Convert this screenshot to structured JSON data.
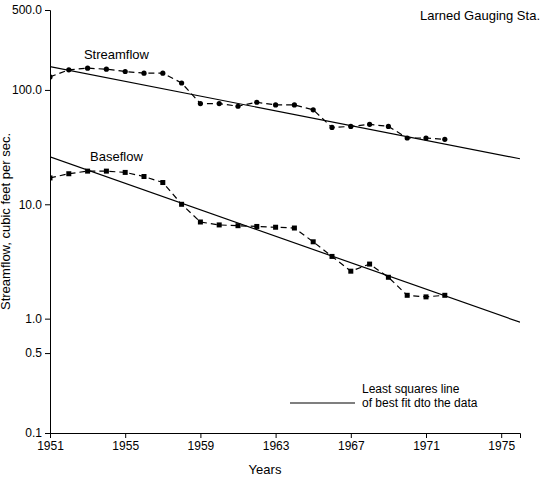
{
  "chart_data": {
    "type": "line",
    "title": "Larned Gauging Sta.",
    "x_label": "Years",
    "y_label": "Streamflow, cubic feet per sec.",
    "log": "y",
    "grid": false,
    "legend": "lower right",
    "xlim": [
      1951,
      1976
    ],
    "xticks": [
      1951,
      1955,
      1959,
      1963,
      1967,
      1971,
      1975
    ],
    "ylim": [
      0.1,
      500
    ],
    "yticks": [
      {
        "value": 0.1,
        "label": "0.1"
      },
      {
        "value": 0.5,
        "label": "0.5"
      },
      {
        "value": 1,
        "label": "1.0"
      },
      {
        "value": 10,
        "label": "10.0"
      },
      {
        "value": 100,
        "label": "100.0"
      },
      {
        "value": 500,
        "label": "500.0"
      }
    ],
    "series": [
      {
        "name": "Streamflow",
        "color": "#000000",
        "marker": "circle",
        "line_style": "dashed",
        "x": [
          1951,
          1952,
          1953,
          1954,
          1955,
          1956,
          1957,
          1958,
          1959,
          1960,
          1961,
          1962,
          1963,
          1964,
          1965,
          1966,
          1967,
          1968,
          1969,
          1970,
          1971,
          1972
        ],
        "values": [
          130,
          150,
          155,
          152,
          145,
          140,
          140,
          115,
          76,
          76,
          72,
          78,
          74,
          74,
          67,
          47,
          48,
          50,
          48,
          38,
          38,
          37
        ]
      },
      {
        "name": "Baseflow",
        "color": "#000000",
        "marker": "square",
        "line_style": "dashed",
        "x": [
          1951,
          1952,
          1953,
          1954,
          1955,
          1956,
          1957,
          1958,
          1959,
          1960,
          1961,
          1962,
          1963,
          1964,
          1965,
          1966,
          1967,
          1968,
          1969,
          1970,
          1971,
          1972
        ],
        "values": [
          17,
          18.5,
          19.5,
          19.5,
          19,
          17.5,
          15.5,
          10,
          7,
          6.6,
          6.5,
          6.4,
          6.3,
          6.2,
          4.7,
          3.5,
          2.6,
          3,
          2.3,
          1.6,
          1.55,
          1.6
        ]
      },
      {
        "name": "Least squares line\nof best fit dto the data",
        "color": "#000000",
        "marker": "none",
        "line_style": "solid",
        "x": [
          1951,
          1976
        ],
        "values": [
          160,
          25
        ]
      },
      {
        "name": "Least squares line\nof best fit dto the data",
        "color": "#000000",
        "marker": "none",
        "line_style": "solid",
        "x": [
          1951,
          1976
        ],
        "values": [
          26,
          0.93
        ]
      }
    ]
  }
}
